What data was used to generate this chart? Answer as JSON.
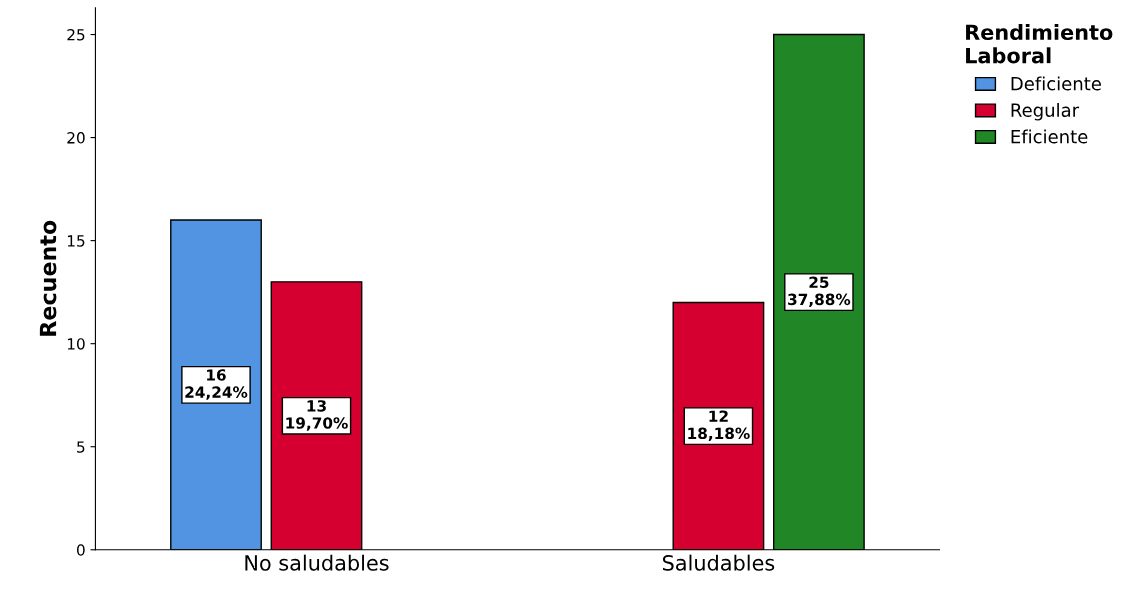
{
  "chart_data": {
    "type": "bar",
    "ylabel": "Recuento",
    "legend_title": "Rendimiento\nLaboral",
    "legend": "top right",
    "categories": [
      "No saludables",
      "Saludables"
    ],
    "series": [
      {
        "name": "Deficiente",
        "color": "#5294e2",
        "values": [
          16,
          null
        ],
        "value_labels": [
          "16\n24,24%",
          null
        ]
      },
      {
        "name": "Regular",
        "color": "#d5002f",
        "values": [
          13,
          12
        ],
        "value_labels": [
          "13\n19,70%",
          "12\n18,18%"
        ]
      },
      {
        "name": "Eficiente",
        "color": "#218726",
        "values": [
          null,
          25
        ],
        "value_labels": [
          null,
          "25\n37,88%"
        ]
      }
    ],
    "ylim": [
      0,
      26.3
    ],
    "yticks": [
      0,
      5,
      10,
      15,
      20,
      25
    ],
    "grid": false
  }
}
